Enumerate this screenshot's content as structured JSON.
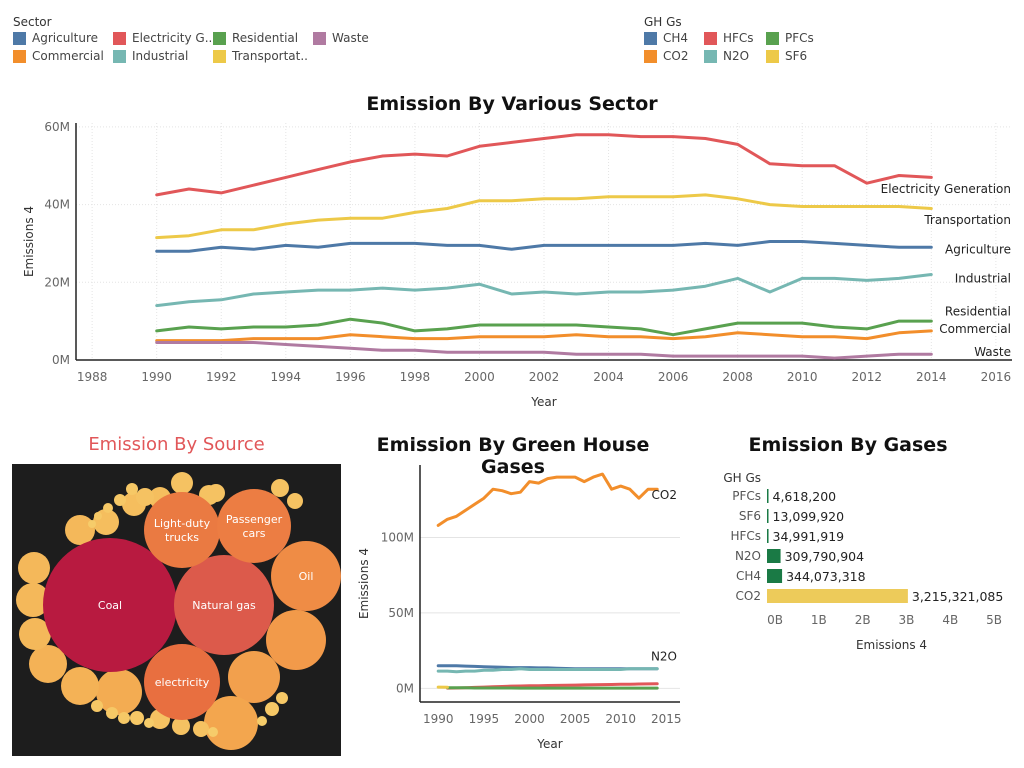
{
  "sector_legend": {
    "title": "Sector",
    "items": [
      {
        "label": "Agriculture",
        "color": "#4e79a7"
      },
      {
        "label": "Electricity G..",
        "color": "#e15759"
      },
      {
        "label": "Residential",
        "color": "#59a14f"
      },
      {
        "label": "Waste",
        "color": "#b07aa1"
      },
      {
        "label": "Commercial",
        "color": "#f28e2b"
      },
      {
        "label": "Industrial",
        "color": "#76b7b2"
      },
      {
        "label": "Transportat..",
        "color": "#edc948"
      }
    ]
  },
  "ghg_legend": {
    "title": "GH Gs",
    "items": [
      {
        "label": "CH4",
        "color": "#4e79a7"
      },
      {
        "label": "HFCs",
        "color": "#e15759"
      },
      {
        "label": "PFCs",
        "color": "#59a14f"
      },
      {
        "label": "CO2",
        "color": "#f28e2b"
      },
      {
        "label": "N2O",
        "color": "#76b7b2"
      },
      {
        "label": "SF6",
        "color": "#edc948"
      }
    ]
  },
  "chart_data": [
    {
      "type": "line",
      "title": "Emission By Various Sector",
      "xlabel": "Year",
      "ylabel": "Emissions 4",
      "xlim": [
        1987.5,
        2016.5
      ],
      "ylim": [
        0,
        61000000
      ],
      "xticks": [
        "1988",
        "1990",
        "1992",
        "1994",
        "1996",
        "1998",
        "2000",
        "2002",
        "2004",
        "2006",
        "2008",
        "2010",
        "2012",
        "2014",
        "2016"
      ],
      "yticks": [
        {
          "v": 0,
          "label": "0M"
        },
        {
          "v": 20000000,
          "label": "20M"
        },
        {
          "v": 40000000,
          "label": "40M"
        },
        {
          "v": 60000000,
          "label": "60M"
        }
      ],
      "x": [
        1990,
        1991,
        1992,
        1993,
        1994,
        1995,
        1996,
        1997,
        1998,
        1999,
        2000,
        2001,
        2002,
        2003,
        2004,
        2005,
        2006,
        2007,
        2008,
        2009,
        2010,
        2011,
        2012,
        2013,
        2014
      ],
      "series": [
        {
          "name": "Electricity Generation",
          "color": "#e15759",
          "values": [
            42.5,
            44,
            43,
            45,
            47,
            49,
            51,
            52.5,
            53,
            52.5,
            55,
            56,
            57,
            58,
            58,
            57.5,
            57.5,
            57,
            55.5,
            50.5,
            50,
            50,
            45.5,
            47.5,
            47
          ]
        },
        {
          "name": "Transportation",
          "color": "#edc948",
          "values": [
            31.5,
            32,
            33.5,
            33.5,
            35,
            36,
            36.5,
            36.5,
            38,
            39,
            41,
            41,
            41.5,
            41.5,
            42,
            42,
            42,
            42.5,
            41.5,
            40,
            39.5,
            39.5,
            39.5,
            39.5,
            39
          ]
        },
        {
          "name": "Agriculture",
          "color": "#4e79a7",
          "values": [
            28,
            28,
            29,
            28.5,
            29.5,
            29,
            30,
            30,
            30,
            29.5,
            29.5,
            28.5,
            29.5,
            29.5,
            29.5,
            29.5,
            29.5,
            30,
            29.5,
            30.5,
            30.5,
            30,
            29.5,
            29,
            29
          ]
        },
        {
          "name": "Industrial",
          "color": "#76b7b2",
          "values": [
            14,
            15,
            15.5,
            17,
            17.5,
            18,
            18,
            18.5,
            18,
            18.5,
            19.5,
            17,
            17.5,
            17,
            17.5,
            17.5,
            18,
            19,
            21,
            17.5,
            21,
            21,
            20.5,
            21,
            22
          ]
        },
        {
          "name": "Residential",
          "color": "#59a14f",
          "values": [
            7.5,
            8.5,
            8,
            8.5,
            8.5,
            9,
            10.5,
            9.5,
            7.5,
            8,
            9,
            9,
            9,
            9,
            8.5,
            8,
            6.5,
            8,
            9.5,
            9.5,
            9.5,
            8.5,
            8,
            10,
            10
          ]
        },
        {
          "name": "Commercial",
          "color": "#f28e2b",
          "values": [
            5,
            5,
            5,
            5.5,
            5.5,
            5.5,
            6.5,
            6,
            5.5,
            5.5,
            6,
            6,
            6,
            6.5,
            6,
            6,
            5.5,
            6,
            7,
            6.5,
            6,
            6,
            5.5,
            7,
            7.5
          ]
        },
        {
          "name": "Waste",
          "color": "#b07aa1",
          "values": [
            4.5,
            4.5,
            4.5,
            4.5,
            4,
            3.5,
            3,
            2.5,
            2.5,
            2,
            2,
            2,
            2,
            1.5,
            1.5,
            1.5,
            1,
            1,
            1,
            1,
            1,
            0.5,
            1,
            1.5,
            1.5
          ]
        }
      ],
      "end_labels": [
        {
          "text": "Electricity Generation",
          "v": 44
        },
        {
          "text": "Transportation",
          "v": 36
        },
        {
          "text": "Agriculture",
          "v": 28.5
        },
        {
          "text": "Industrial",
          "v": 21
        },
        {
          "text": "Residential",
          "v": 12.5
        },
        {
          "text": "Commercial",
          "v": 8
        },
        {
          "text": "Waste",
          "v": 2
        }
      ]
    },
    {
      "type": "line",
      "title": "Emission By Green House Gases",
      "xlabel": "Year",
      "ylabel": "Emissions 4",
      "xlim": [
        1988,
        2016.5
      ],
      "ylim": [
        -9000000,
        148000000
      ],
      "xticks": [
        "1990",
        "1995",
        "2000",
        "2005",
        "2010",
        "2015"
      ],
      "yticks": [
        {
          "v": 0,
          "label": "0M"
        },
        {
          "v": 50000000,
          "label": "50M"
        },
        {
          "v": 100000000,
          "label": "100M"
        }
      ],
      "x": [
        1990,
        1991,
        1992,
        1993,
        1994,
        1995,
        1996,
        1997,
        1998,
        1999,
        2000,
        2001,
        2002,
        2003,
        2004,
        2005,
        2006,
        2007,
        2008,
        2009,
        2010,
        2011,
        2012,
        2013,
        2014
      ],
      "series": [
        {
          "name": "CO2",
          "color": "#f28e2b",
          "values": [
            108,
            112,
            114,
            118,
            122,
            126,
            132,
            131,
            129,
            130,
            137,
            136,
            139,
            140,
            140,
            140,
            137,
            140,
            142,
            132,
            134,
            132,
            126,
            132,
            132
          ]
        },
        {
          "name": "CH4",
          "color": "#4e79a7",
          "values": [
            15,
            15,
            15,
            14.8,
            14.6,
            14.4,
            14.2,
            14,
            13.8,
            13.8,
            13.8,
            13.6,
            13.6,
            13.4,
            13.2,
            13,
            13,
            13,
            13,
            13,
            13,
            13,
            13,
            13,
            13
          ]
        },
        {
          "name": "N2O",
          "color": "#76b7b2",
          "values": [
            11.5,
            11.5,
            11,
            11.5,
            11.5,
            12,
            12,
            12.5,
            12.5,
            13,
            12.5,
            12.5,
            12.5,
            12.5,
            12.5,
            12.5,
            12.5,
            12.5,
            12.5,
            12.5,
            12.5,
            13,
            13,
            13,
            13
          ]
        },
        {
          "name": "HFCs",
          "color": "#e15759",
          "values": [
            null,
            0.2,
            0.3,
            0.5,
            0.7,
            0.9,
            1.1,
            1.3,
            1.5,
            1.6,
            1.7,
            1.8,
            1.9,
            2,
            2.1,
            2.2,
            2.3,
            2.4,
            2.5,
            2.6,
            2.7,
            2.8,
            2.9,
            3,
            3.1
          ]
        },
        {
          "name": "PFCs",
          "color": "#59a14f",
          "values": [
            null,
            0.4,
            0.4,
            0.4,
            0.3,
            0.3,
            0.3,
            0.3,
            0.3,
            0.2,
            0.2,
            0.2,
            0.2,
            0.2,
            0.2,
            0.2,
            0.2,
            0.2,
            0.2,
            0.2,
            0.2,
            0.2,
            0.2,
            0.2,
            0.2
          ]
        },
        {
          "name": "SF6",
          "color": "#edc948",
          "values": [
            0.9,
            0.8,
            null,
            null,
            null,
            null,
            null,
            null,
            null,
            null,
            null,
            null,
            null,
            null,
            null,
            null,
            null,
            null,
            null,
            null,
            null,
            null,
            null,
            null,
            null
          ]
        }
      ],
      "end_labels": [
        {
          "text": "CO2",
          "v": 128
        },
        {
          "text": "N2O",
          "v": 21
        }
      ]
    },
    {
      "type": "bar",
      "title": "Emission By Gases",
      "row_header": "GH Gs",
      "xlabel": "Emissions 4",
      "xlim": [
        0,
        5500000000
      ],
      "xticks": [
        {
          "v": 0,
          "label": "0B"
        },
        {
          "v": 1000000000,
          "label": "1B"
        },
        {
          "v": 2000000000,
          "label": "2B"
        },
        {
          "v": 3000000000,
          "label": "3B"
        },
        {
          "v": 4000000000,
          "label": "4B"
        },
        {
          "v": 5000000000,
          "label": "5B"
        }
      ],
      "categories": [
        "PFCs",
        "SF6",
        "HFCs",
        "N2O",
        "CH4",
        "CO2"
      ],
      "values": [
        4618200,
        13099920,
        34991919,
        309790904,
        344073318,
        3215321085
      ],
      "value_labels": [
        "4,618,200",
        "13,099,920",
        "34,991,919",
        "309,790,904",
        "344,073,318",
        "3,215,321,085"
      ],
      "colors": [
        "#1a7a45",
        "#1a7a45",
        "#1a7a45",
        "#1a7a45",
        "#1a7a45",
        "#edcb5a"
      ]
    }
  ],
  "source_panel": {
    "title": "Emission By Source",
    "bubbles": [
      {
        "label": "Coal"
      },
      {
        "label": "Natural gas"
      },
      {
        "label": "electricity"
      },
      {
        "label": "Light-duty trucks"
      },
      {
        "label": "Passenger cars"
      },
      {
        "label": "Oil"
      }
    ]
  }
}
